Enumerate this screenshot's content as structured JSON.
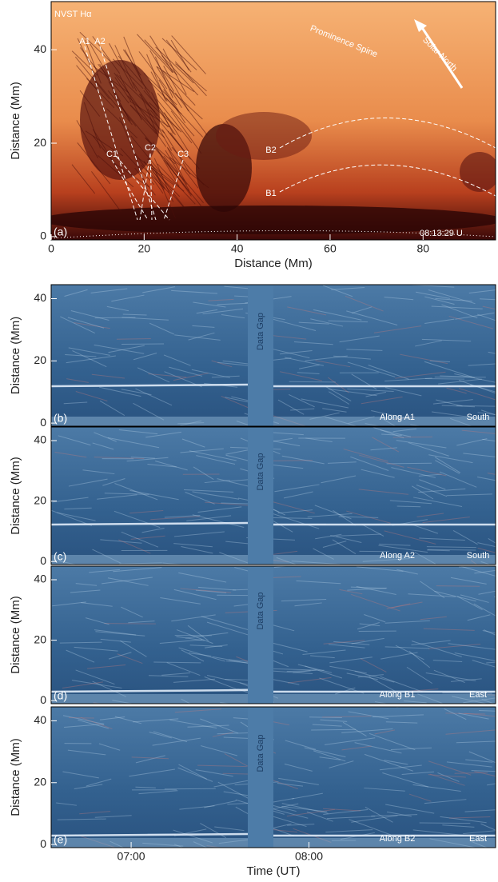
{
  "chart_data": [
    {
      "type": "image",
      "panel_label": "(a)",
      "xlabel": "Distance (Mm)",
      "ylabel": "Distance (Mm)",
      "xlim": [
        0,
        95.6
      ],
      "xticks": [
        0,
        20,
        40,
        60,
        80
      ],
      "ylim": [
        -0.7,
        50.3
      ],
      "yticks": [
        0,
        20,
        40
      ],
      "annotations": [
        "NVST Hα",
        "Prominence Spine",
        "Solar North",
        "08:13:29 U",
        "A1",
        "A2",
        "C1",
        "C2",
        "C3",
        "B1",
        "B2"
      ]
    },
    {
      "type": "image",
      "panel_label": "(b)",
      "ylabel": "Distance (Mm)",
      "gap_label": "Data Gap",
      "xlim": [
        393,
        543
      ],
      "ylim": [
        -1,
        44.5
      ],
      "yticks": [
        0,
        20,
        40
      ],
      "annotations": [
        "Along A1",
        "South"
      ]
    },
    {
      "type": "image",
      "panel_label": "(c)",
      "ylabel": "Distance (Mm)",
      "gap_label": "Data Gap",
      "xlim": [
        393,
        543
      ],
      "ylim": [
        -1,
        44.5
      ],
      "yticks": [
        0,
        20,
        40
      ],
      "annotations": [
        "Along A2",
        "South"
      ]
    },
    {
      "type": "image",
      "panel_label": "(d)",
      "ylabel": "Distance (Mm)",
      "gap_label": "Data Gap",
      "xlim": [
        393,
        543
      ],
      "ylim": [
        -1,
        44.5
      ],
      "yticks": [
        0,
        20,
        40
      ],
      "annotations": [
        "Along B1",
        "East"
      ]
    },
    {
      "type": "image",
      "panel_label": "(e)",
      "ylabel": "Distance (Mm)",
      "gap_label": "Data Gap",
      "xlabel": "Time (UT)",
      "xlim": [
        393,
        543
      ],
      "xticks": [
        {
          "value": 420,
          "label": "07:00"
        },
        {
          "value": 480,
          "label": "08:00"
        }
      ],
      "ylim": [
        -1,
        44.5
      ],
      "yticks": [
        0,
        20,
        40
      ],
      "annotations": [
        "Along B2",
        "East"
      ]
    }
  ]
}
